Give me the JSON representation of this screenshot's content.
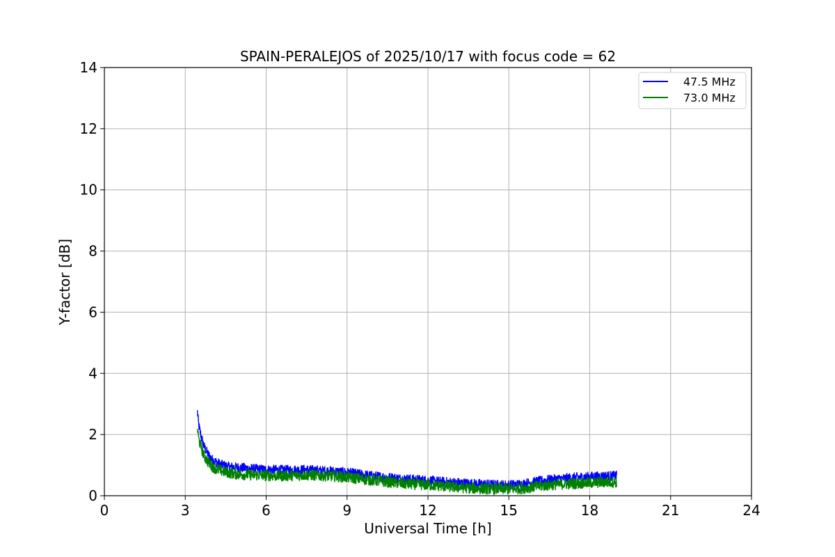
{
  "chart_data": {
    "type": "line",
    "title": "SPAIN-PERALEJOS of 2025/10/17 with focus code = 62",
    "xlabel": "Universal Time [h]",
    "ylabel": "Y-factor [dB]",
    "xlim": [
      0,
      24
    ],
    "ylim": [
      0,
      14
    ],
    "xticks": [
      0,
      3,
      6,
      9,
      12,
      15,
      18,
      21,
      24
    ],
    "yticks": [
      0,
      2,
      4,
      6,
      8,
      10,
      12,
      14
    ],
    "grid": true,
    "legend_position": "top-right",
    "series": [
      {
        "name": "47.5 MHz",
        "color": "#0000ff",
        "noise_band": 0.16,
        "x": [
          3.45,
          3.5,
          3.6,
          3.7,
          3.85,
          4.0,
          4.3,
          4.6,
          5.0,
          5.5,
          6.0,
          6.5,
          7.0,
          7.5,
          8.0,
          8.5,
          9.0,
          9.5,
          10.0,
          10.5,
          11.0,
          11.5,
          12.0,
          12.5,
          13.0,
          13.5,
          14.0,
          14.5,
          15.0,
          15.5,
          16.0,
          16.5,
          17.0,
          17.5,
          18.0,
          18.5,
          19.0
        ],
        "y": [
          2.75,
          2.3,
          1.9,
          1.6,
          1.35,
          1.18,
          1.02,
          0.95,
          0.92,
          0.88,
          0.85,
          0.84,
          0.84,
          0.85,
          0.82,
          0.8,
          0.76,
          0.7,
          0.64,
          0.6,
          0.56,
          0.53,
          0.5,
          0.46,
          0.43,
          0.4,
          0.38,
          0.36,
          0.35,
          0.38,
          0.46,
          0.52,
          0.56,
          0.6,
          0.62,
          0.64,
          0.65
        ]
      },
      {
        "name": "73.0 MHz",
        "color": "#008000",
        "noise_band": 0.18,
        "x": [
          3.45,
          3.5,
          3.6,
          3.7,
          3.85,
          4.0,
          4.3,
          4.6,
          5.0,
          5.5,
          6.0,
          6.5,
          7.0,
          7.5,
          8.0,
          8.5,
          9.0,
          9.5,
          10.0,
          10.5,
          11.0,
          11.5,
          12.0,
          12.5,
          13.0,
          13.5,
          14.0,
          14.5,
          15.0,
          15.5,
          16.0,
          16.5,
          17.0,
          17.5,
          18.0,
          18.5,
          19.0
        ],
        "y": [
          2.2,
          1.85,
          1.55,
          1.3,
          1.1,
          0.95,
          0.82,
          0.75,
          0.7,
          0.68,
          0.66,
          0.65,
          0.66,
          0.68,
          0.66,
          0.64,
          0.6,
          0.55,
          0.5,
          0.45,
          0.4,
          0.37,
          0.35,
          0.32,
          0.28,
          0.25,
          0.23,
          0.22,
          0.22,
          0.24,
          0.3,
          0.35,
          0.38,
          0.4,
          0.42,
          0.44,
          0.45
        ]
      }
    ]
  }
}
